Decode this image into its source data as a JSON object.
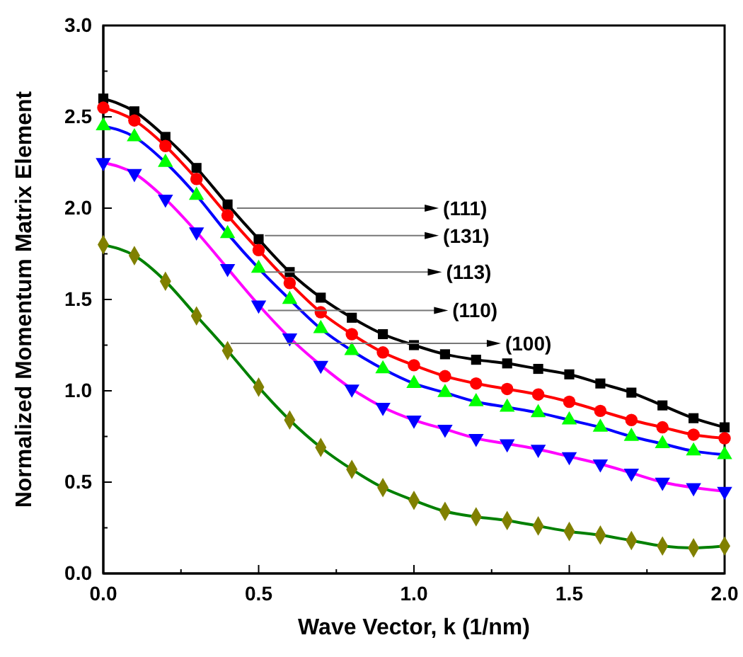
{
  "chart_data": {
    "type": "line",
    "xlabel": "Wave Vector, k (1/nm)",
    "ylabel": "Normalized Momentum Matrix Element",
    "x": [
      0,
      0.1,
      0.2,
      0.3,
      0.4,
      0.5,
      0.6,
      0.7,
      0.8,
      0.9,
      1.0,
      1.1,
      1.2,
      1.3,
      1.4,
      1.5,
      1.6,
      1.7,
      1.8,
      1.9,
      2.0
    ],
    "xlim": [
      0,
      2
    ],
    "ylim": [
      0,
      3
    ],
    "xticks": [
      {
        "value": 0,
        "label": "0.0"
      },
      {
        "value": 0.25,
        "label": null
      },
      {
        "value": 0.5,
        "label": "0.5"
      },
      {
        "value": 0.75,
        "label": null
      },
      {
        "value": 1,
        "label": "1.0"
      },
      {
        "value": 1.25,
        "label": null
      },
      {
        "value": 1.5,
        "label": "1.5"
      },
      {
        "value": 1.75,
        "label": null
      },
      {
        "value": 2,
        "label": "2.0"
      }
    ],
    "yticks": [
      {
        "value": 0,
        "label": "0.0"
      },
      {
        "value": 0.25,
        "label": null
      },
      {
        "value": 0.5,
        "label": "0.5"
      },
      {
        "value": 0.75,
        "label": null
      },
      {
        "value": 1,
        "label": "1.0"
      },
      {
        "value": 1.25,
        "label": null
      },
      {
        "value": 1.5,
        "label": "1.5"
      },
      {
        "value": 1.75,
        "label": null
      },
      {
        "value": 2,
        "label": "2.0"
      },
      {
        "value": 2.25,
        "label": null
      },
      {
        "value": 2.5,
        "label": "2.5"
      },
      {
        "value": 2.75,
        "label": null
      },
      {
        "value": 3,
        "label": "3.0"
      }
    ],
    "grid": false,
    "line_style": "solid",
    "annotations": [
      {
        "text": "(111)",
        "x": 0.43,
        "y": 2.0
      },
      {
        "text": "(131)",
        "x": 0.52,
        "y": 1.85
      },
      {
        "text": "(113)",
        "x": 0.52,
        "y": 1.65
      },
      {
        "text": "(110)",
        "x": 0.53,
        "y": 1.44
      },
      {
        "text": "(100)",
        "x": 0.41,
        "y": 1.26
      }
    ],
    "series": [
      {
        "color": "#000000",
        "marker": "square",
        "values": [
          2.6,
          2.53,
          2.39,
          2.22,
          2.02,
          1.83,
          1.65,
          1.51,
          1.4,
          1.31,
          1.25,
          1.2,
          1.17,
          1.15,
          1.12,
          1.09,
          1.04,
          0.99,
          0.92,
          0.85,
          0.8
        ]
      },
      {
        "color": "#ff0000",
        "marker": "circle",
        "values": [
          2.55,
          2.48,
          2.34,
          2.16,
          1.96,
          1.77,
          1.59,
          1.43,
          1.31,
          1.21,
          1.14,
          1.08,
          1.04,
          1.01,
          0.98,
          0.94,
          0.89,
          0.84,
          0.8,
          0.76,
          0.74
        ]
      },
      {
        "color": "#0000ff",
        "marker": "triangle",
        "colors": [
          "#00ff00",
          "#00ff00",
          "#00ff00",
          "#00ff00",
          "#00ff00",
          "#00ff00",
          "#00ff00",
          "#00ff00",
          "#00ff00",
          "#00ff00",
          "#00ff00",
          "#00ff00",
          "#00ff00",
          "#00ff00",
          "#00ff00",
          "#00ff00",
          "#00ff00",
          "#00ff00",
          "#00ff00",
          "#00ff00",
          "#00ff00"
        ],
        "values": [
          2.45,
          2.39,
          2.25,
          2.07,
          1.86,
          1.67,
          1.5,
          1.34,
          1.22,
          1.12,
          1.04,
          0.99,
          0.94,
          0.91,
          0.88,
          0.84,
          0.8,
          0.75,
          0.71,
          0.67,
          0.65
        ]
      },
      {
        "color": "#ff00ff",
        "marker": "triangle-down",
        "colors": [
          "#0000ff",
          "#0000ff",
          "#0000ff",
          "#0000ff",
          "#0000ff",
          "#0000ff",
          "#0000ff",
          "#0000ff",
          "#0000ff",
          "#0000ff",
          "#0000ff",
          "#0000ff",
          "#0000ff",
          "#0000ff",
          "#0000ff",
          "#0000ff",
          "#0000ff",
          "#0000ff",
          "#0000ff",
          "#0000ff",
          "#0000ff"
        ],
        "values": [
          2.25,
          2.19,
          2.05,
          1.87,
          1.67,
          1.47,
          1.29,
          1.14,
          1.01,
          0.91,
          0.84,
          0.79,
          0.74,
          0.71,
          0.68,
          0.64,
          0.6,
          0.55,
          0.5,
          0.47,
          0.45
        ]
      },
      {
        "color": "#008000",
        "marker": "diamond",
        "colors": [
          "#808000",
          "#808000",
          "#808000",
          "#808000",
          "#808000",
          "#808000",
          "#808000",
          "#808000",
          "#808000",
          "#808000",
          "#808000",
          "#808000",
          "#808000",
          "#808000",
          "#808000",
          "#808000",
          "#808000",
          "#808000",
          "#808000",
          "#808000",
          "#808000"
        ],
        "values": [
          1.8,
          1.74,
          1.6,
          1.41,
          1.22,
          1.02,
          0.84,
          0.69,
          0.57,
          0.47,
          0.4,
          0.34,
          0.31,
          0.29,
          0.26,
          0.23,
          0.21,
          0.18,
          0.15,
          0.14,
          0.15
        ]
      }
    ]
  }
}
